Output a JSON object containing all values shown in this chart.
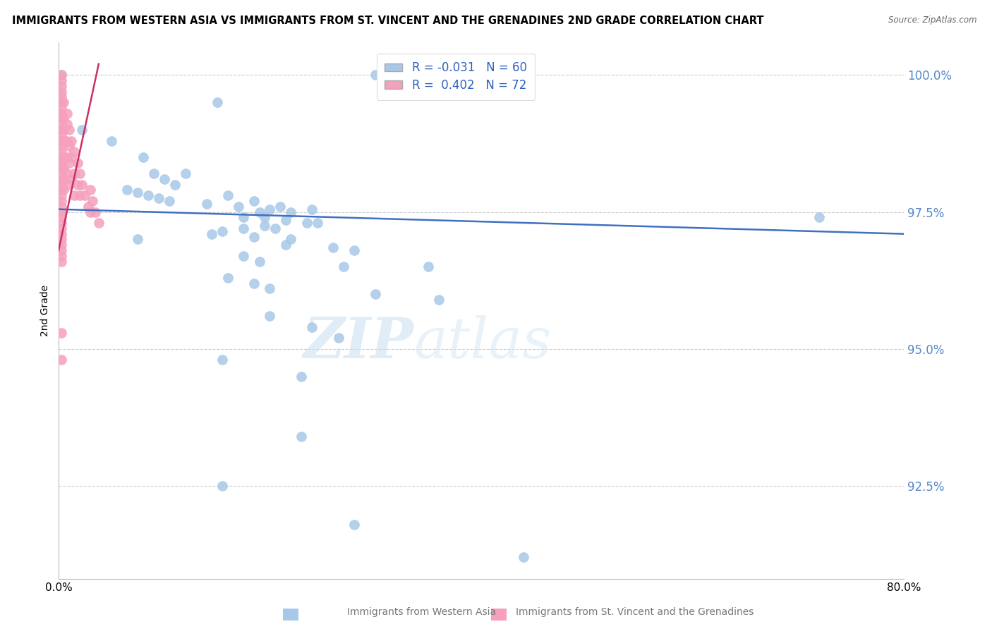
{
  "title": "IMMIGRANTS FROM WESTERN ASIA VS IMMIGRANTS FROM ST. VINCENT AND THE GRENADINES 2ND GRADE CORRELATION CHART",
  "source": "Source: ZipAtlas.com",
  "ylabel": "2nd Grade",
  "xmin": 0.0,
  "xmax": 0.8,
  "ymin": 90.8,
  "ymax": 100.6,
  "legend_blue_r": "-0.031",
  "legend_blue_n": "60",
  "legend_pink_r": "0.402",
  "legend_pink_n": "72",
  "blue_color": "#a8c8e8",
  "pink_color": "#f5a0bc",
  "line_color": "#4070c0",
  "pink_line_color": "#cc3060",
  "watermark_text": "ZIPatlas",
  "blue_scatter_x": [
    0.003,
    0.022,
    0.15,
    0.3,
    0.39,
    0.05,
    0.08,
    0.09,
    0.1,
    0.11,
    0.12,
    0.065,
    0.075,
    0.085,
    0.095,
    0.105,
    0.14,
    0.17,
    0.2,
    0.22,
    0.16,
    0.185,
    0.21,
    0.24,
    0.19,
    0.175,
    0.195,
    0.215,
    0.235,
    0.245,
    0.195,
    0.205,
    0.175,
    0.155,
    0.145,
    0.185,
    0.22,
    0.075,
    0.215,
    0.26,
    0.28,
    0.175,
    0.19,
    0.27,
    0.35,
    0.16,
    0.185,
    0.2,
    0.3,
    0.36,
    0.2,
    0.24,
    0.265,
    0.155,
    0.23,
    0.72,
    0.23,
    0.155,
    0.28,
    0.44
  ],
  "blue_scatter_y": [
    100.0,
    99.0,
    99.5,
    100.0,
    100.0,
    98.8,
    98.5,
    98.2,
    98.1,
    98.0,
    98.2,
    97.9,
    97.85,
    97.8,
    97.75,
    97.7,
    97.65,
    97.6,
    97.55,
    97.5,
    97.8,
    97.7,
    97.6,
    97.55,
    97.5,
    97.4,
    97.4,
    97.35,
    97.3,
    97.3,
    97.25,
    97.2,
    97.2,
    97.15,
    97.1,
    97.05,
    97.0,
    97.0,
    96.9,
    96.85,
    96.8,
    96.7,
    96.6,
    96.5,
    96.5,
    96.3,
    96.2,
    96.1,
    96.0,
    95.9,
    95.6,
    95.4,
    95.2,
    94.8,
    94.5,
    97.4,
    93.4,
    92.5,
    91.8,
    91.2
  ],
  "pink_scatter_x": [
    0.003,
    0.003,
    0.003,
    0.003,
    0.003,
    0.003,
    0.003,
    0.003,
    0.003,
    0.003,
    0.003,
    0.003,
    0.003,
    0.003,
    0.003,
    0.003,
    0.003,
    0.005,
    0.005,
    0.005,
    0.005,
    0.005,
    0.005,
    0.005,
    0.005,
    0.008,
    0.008,
    0.008,
    0.008,
    0.008,
    0.01,
    0.01,
    0.01,
    0.01,
    0.012,
    0.012,
    0.012,
    0.015,
    0.015,
    0.015,
    0.018,
    0.018,
    0.02,
    0.02,
    0.022,
    0.025,
    0.028,
    0.03,
    0.03,
    0.032,
    0.035,
    0.038,
    0.003,
    0.003,
    0.003,
    0.003,
    0.003,
    0.003,
    0.003,
    0.003,
    0.003,
    0.003,
    0.003,
    0.003,
    0.003,
    0.003,
    0.003,
    0.003,
    0.003,
    0.003,
    0.003,
    0.003
  ],
  "pink_scatter_y": [
    100.0,
    99.9,
    99.8,
    99.7,
    99.6,
    99.5,
    99.4,
    99.3,
    99.2,
    99.1,
    99.0,
    98.9,
    98.8,
    98.7,
    98.6,
    98.5,
    98.4,
    99.5,
    99.2,
    99.0,
    98.8,
    98.5,
    98.3,
    98.1,
    97.9,
    99.3,
    99.1,
    98.8,
    98.5,
    98.2,
    99.0,
    98.7,
    98.4,
    98.0,
    98.8,
    98.5,
    98.1,
    98.6,
    98.2,
    97.8,
    98.4,
    98.0,
    98.2,
    97.8,
    98.0,
    97.8,
    97.6,
    97.9,
    97.5,
    97.7,
    97.5,
    97.3,
    98.3,
    98.2,
    98.1,
    98.0,
    97.9,
    97.8,
    97.7,
    97.6,
    97.5,
    97.4,
    97.3,
    97.2,
    97.1,
    97.0,
    96.9,
    96.8,
    96.7,
    96.6,
    95.3,
    94.8
  ]
}
